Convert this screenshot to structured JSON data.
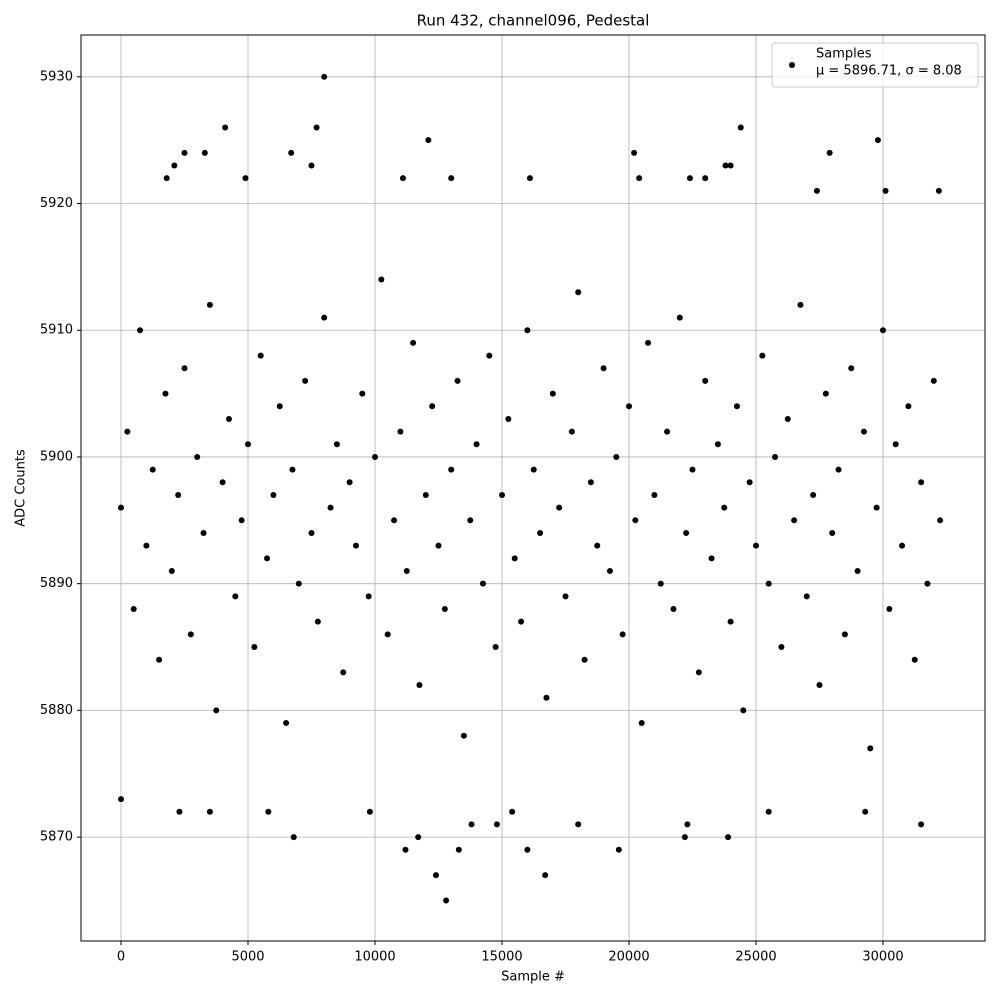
{
  "chart_data": {
    "type": "scatter",
    "title": "Run 432, channel096, Pedestal",
    "x_label": "Sample #",
    "y_label": "ADC Counts",
    "xlim": [
      -1575,
      34016
    ],
    "ylim": [
      5861.8,
      5933.3
    ],
    "xticks": [
      0,
      5000,
      10000,
      15000,
      20000,
      25000,
      30000
    ],
    "yticks": [
      5870,
      5880,
      5890,
      5900,
      5910,
      5920,
      5930
    ],
    "grid": true,
    "legend_position": "upper right",
    "legend_label": "μ = 5896.71, σ = 8.08",
    "series": [
      {
        "name": "Samples",
        "color": "#000000",
        "x": [
          0,
          250,
          500,
          750,
          1000,
          1250,
          1500,
          1750,
          2000,
          2250,
          2500,
          2750,
          3000,
          3250,
          3500,
          3750,
          4000,
          4250,
          4500,
          4750,
          5000,
          5250,
          5500,
          5750,
          6000,
          6250,
          6500,
          6750,
          7000,
          7250,
          7500,
          7750,
          8000,
          8250,
          8500,
          8750,
          9000,
          9250,
          9500,
          9750,
          10000,
          10250,
          10500,
          10750,
          11000,
          11250,
          11500,
          11750,
          12000,
          12250,
          12500,
          12750,
          13000,
          13250,
          13500,
          13750,
          14000,
          14250,
          14500,
          14750,
          15000,
          15250,
          15500,
          15750,
          16000,
          16250,
          16500,
          16750,
          17000,
          17250,
          17500,
          17750,
          18000,
          18250,
          18500,
          18750,
          19000,
          19250,
          19500,
          19750,
          20000,
          20250,
          20500,
          20750,
          21000,
          21250,
          21500,
          21750,
          22000,
          22250,
          22500,
          22750,
          23000,
          23250,
          23500,
          23750,
          24000,
          24250,
          24500,
          24750,
          25000,
          25250,
          25500,
          25750,
          26000,
          26250,
          26500,
          26750,
          27000,
          27250,
          27500,
          27750,
          28000,
          28250,
          28500,
          28750,
          29000,
          29250,
          29500,
          29750,
          30000,
          30250,
          30500,
          30750,
          31000,
          31250,
          31500,
          31750,
          32000,
          32250,
          8000,
          4100,
          7700,
          24400,
          2500,
          3300,
          6700,
          20200,
          27900,
          12100,
          29800,
          6800,
          11700,
          22200,
          23900,
          12400,
          16700,
          12800,
          11200,
          13300,
          16000,
          19600,
          3500,
          2300,
          5800,
          9800,
          15400,
          25500,
          29300,
          31500,
          14800,
          13800,
          18000,
          22300,
          4900,
          1800,
          11100,
          13000,
          16100,
          22400,
          23000,
          20400,
          7500,
          2100,
          23800,
          24000,
          30100,
          32200,
          27400,
          0
        ],
        "values": [
          5896,
          5902,
          5888,
          5910,
          5893,
          5899,
          5884,
          5905,
          5891,
          5897,
          5907,
          5886,
          5900,
          5894,
          5912,
          5880,
          5898,
          5903,
          5889,
          5895,
          5901,
          5885,
          5908,
          5892,
          5897,
          5904,
          5879,
          5899,
          5890,
          5906,
          5894,
          5887,
          5911,
          5896,
          5901,
          5883,
          5898,
          5893,
          5905,
          5889,
          5900,
          5914,
          5886,
          5895,
          5902,
          5891,
          5909,
          5882,
          5897,
          5904,
          5893,
          5888,
          5899,
          5906,
          5878,
          5895,
          5901,
          5890,
          5908,
          5885,
          5897,
          5903,
          5892,
          5887,
          5910,
          5899,
          5894,
          5881,
          5905,
          5896,
          5889,
          5902,
          5913,
          5884,
          5898,
          5893,
          5907,
          5891,
          5900,
          5886,
          5904,
          5895,
          5879,
          5909,
          5897,
          5890,
          5902,
          5888,
          5911,
          5894,
          5899,
          5883,
          5906,
          5892,
          5901,
          5896,
          5887,
          5904,
          5880,
          5898,
          5893,
          5908,
          5890,
          5900,
          5885,
          5903,
          5895,
          5912,
          5889,
          5897,
          5882,
          5905,
          5894,
          5899,
          5886,
          5907,
          5891,
          5902,
          5877,
          5896,
          5910,
          5888,
          5901,
          5893,
          5904,
          5884,
          5898,
          5890,
          5906,
          5895,
          5930,
          5926,
          5926,
          5926,
          5924,
          5924,
          5924,
          5924,
          5924,
          5925,
          5925,
          5870,
          5870,
          5870,
          5870,
          5867,
          5867,
          5865,
          5869,
          5869,
          5869,
          5869,
          5872,
          5872,
          5872,
          5872,
          5872,
          5872,
          5872,
          5871,
          5871,
          5871,
          5871,
          5871,
          5922,
          5922,
          5922,
          5922,
          5922,
          5922,
          5922,
          5922,
          5923,
          5923,
          5923,
          5923,
          5921,
          5921,
          5921,
          5873
        ]
      }
    ]
  }
}
